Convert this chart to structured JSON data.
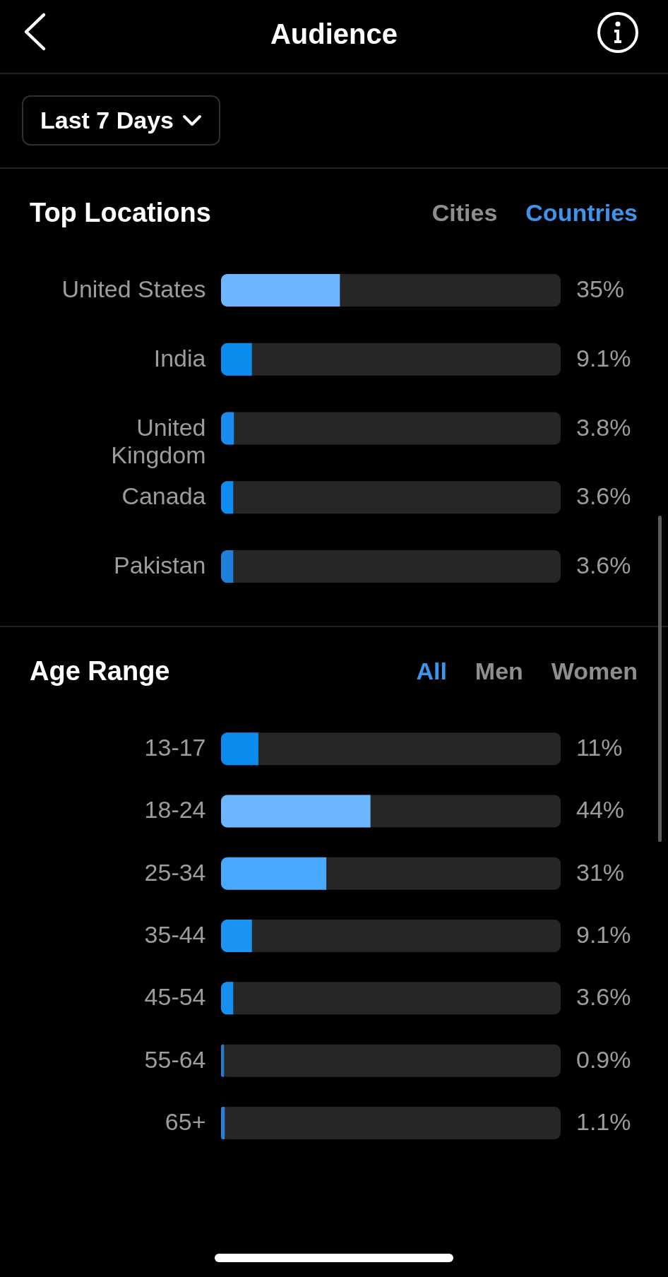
{
  "chart_data": [
    {
      "type": "other",
      "title": "Audience",
      "annotations": [
        "Last 7 Days"
      ]
    },
    {
      "type": "bar",
      "orientation": "horizontal",
      "title": "Top Locations",
      "annotations": [
        "Cities",
        "Countries"
      ],
      "categories": [
        "United States",
        "India",
        "United Kingdom",
        "Canada",
        "Pakistan"
      ],
      "values": [
        35,
        9.1,
        3.8,
        3.6,
        3.6
      ],
      "colors": [
        "#6cb6ff",
        "#0b8df0",
        "#1a8cf0",
        "#108cf0",
        "#1f80da"
      ],
      "value_labels": [
        "35%",
        "9.1%",
        "3.8%",
        "3.6%",
        "3.6%"
      ],
      "xlim": [
        0,
        100
      ],
      "tick_labels": "y"
    },
    {
      "type": "bar",
      "orientation": "horizontal",
      "title": "Age Range",
      "annotations": [
        "All",
        "Men",
        "Women"
      ],
      "categories": [
        "13-17",
        "18-24",
        "25-34",
        "35-44",
        "45-54",
        "55-64",
        "65+"
      ],
      "values": [
        11,
        44,
        31,
        9.1,
        3.6,
        0.9,
        1.1
      ],
      "colors": [
        "#0b8df0",
        "#6cb6ff",
        "#48a9ff",
        "#1a94f5",
        "#1590f0",
        "#2a7ad0",
        "#2a80d8"
      ],
      "value_labels": [
        "11%",
        "44%",
        "31%",
        "9.1%",
        "3.6%",
        "0.9%",
        "1.1%"
      ],
      "xlim": [
        0,
        100
      ],
      "tick_labels": "y"
    }
  ]
}
